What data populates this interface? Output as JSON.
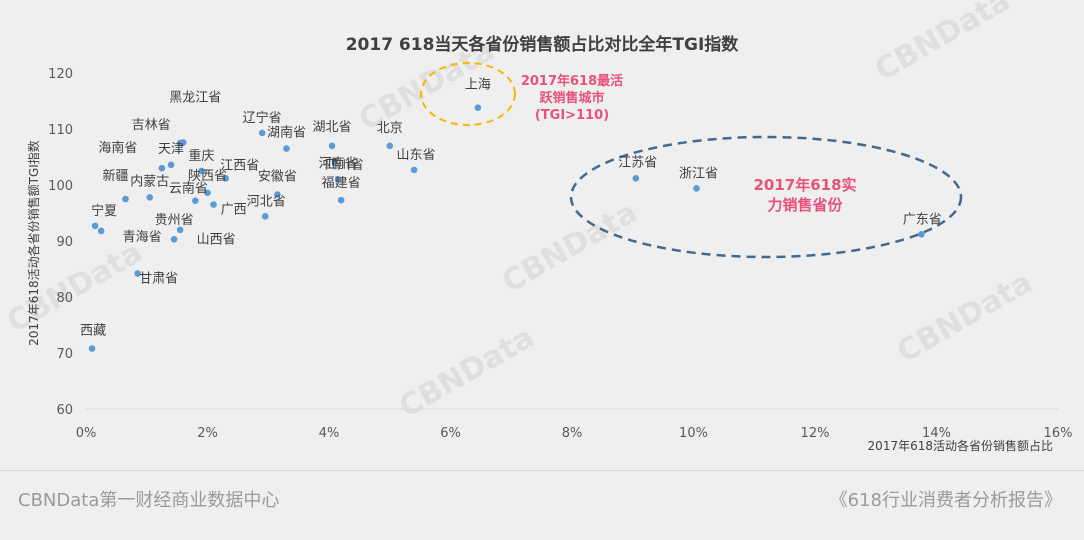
{
  "watermark": "CBNData",
  "footer": {
    "left": "CBNData第一财经商业数据中心",
    "right": "《618行业消费者分析报告》"
  },
  "colors": {
    "point": "#5b9bd5",
    "highlight_text": "#e8527a",
    "yellow_ellipse": "#f5b800",
    "blue_ellipse": "#44698f",
    "axis_text": "#595959"
  },
  "chart_data": {
    "type": "scatter",
    "title": "2017 618当天各省份销售额占比对比全年TGI指数",
    "xlabel": "2017年618活动各省份销售额占比",
    "ylabel": "2017年618活动各省份销售额TGI指数",
    "xlim": [
      0,
      16
    ],
    "ylim": [
      60,
      120
    ],
    "x_unit": "%",
    "x_ticks": [
      "0%",
      "2%",
      "4%",
      "6%",
      "8%",
      "10%",
      "12%",
      "14%",
      "16%"
    ],
    "y_ticks": [
      "60",
      "70",
      "80",
      "90",
      "100",
      "110",
      "120"
    ],
    "grid": false,
    "points": [
      {
        "label": "上海",
        "x": 6.45,
        "y": 113.8
      },
      {
        "label": "黑龙江省",
        "x": 1.6,
        "y": 107.6
      },
      {
        "label": "辽宁省",
        "x": 2.9,
        "y": 109.3
      },
      {
        "label": "湖南省",
        "x": 3.3,
        "y": 106.5
      },
      {
        "label": "湖北省",
        "x": 4.05,
        "y": 107.0
      },
      {
        "label": "北京",
        "x": 5.0,
        "y": 107.0
      },
      {
        "label": "吉林省",
        "x": 1.55,
        "y": 107.5
      },
      {
        "label": "海南省",
        "x": 1.25,
        "y": 103.0
      },
      {
        "label": "天津",
        "x": 1.4,
        "y": 103.6
      },
      {
        "label": "重庆",
        "x": 1.9,
        "y": 102.5
      },
      {
        "label": "江西省",
        "x": 2.3,
        "y": 101.2
      },
      {
        "label": "四川省",
        "x": 4.1,
        "y": 104.3
      },
      {
        "label": "山东省",
        "x": 5.4,
        "y": 102.7
      },
      {
        "label": "河南省",
        "x": 4.15,
        "y": 101.0
      },
      {
        "label": "福建省",
        "x": 4.2,
        "y": 97.3
      },
      {
        "label": "新疆",
        "x": 0.65,
        "y": 97.5
      },
      {
        "label": "内蒙古",
        "x": 1.05,
        "y": 97.8
      },
      {
        "label": "陕西省",
        "x": 2.0,
        "y": 98.6
      },
      {
        "label": "云南省",
        "x": 1.8,
        "y": 97.2
      },
      {
        "label": "安徽省",
        "x": 3.15,
        "y": 98.3
      },
      {
        "label": "广西",
        "x": 2.1,
        "y": 96.5
      },
      {
        "label": "河北省",
        "x": 2.95,
        "y": 94.4
      },
      {
        "label": "宁夏",
        "x": 0.15,
        "y": 92.7
      },
      {
        "label": "青海省",
        "x": 0.25,
        "y": 91.8
      },
      {
        "label": "贵州省",
        "x": 1.55,
        "y": 92.0
      },
      {
        "label": "山西省",
        "x": 1.45,
        "y": 90.3
      },
      {
        "label": "甘肃省",
        "x": 0.85,
        "y": 84.2
      },
      {
        "label": "西藏",
        "x": 0.1,
        "y": 70.8
      },
      {
        "label": "江苏省",
        "x": 9.05,
        "y": 101.2
      },
      {
        "label": "浙江省",
        "x": 10.05,
        "y": 99.4
      },
      {
        "label": "广东省",
        "x": 13.75,
        "y": 91.2
      }
    ],
    "annotations": [
      {
        "text": "2017年618最活跃销售城市(TGI>110)",
        "lines": [
          "2017年618最活",
          "跃销售城市",
          "(TGI>110)"
        ]
      },
      {
        "text": "2017年618实力销售省份",
        "lines": [
          "2017年618实",
          "力销售省份"
        ]
      }
    ]
  }
}
